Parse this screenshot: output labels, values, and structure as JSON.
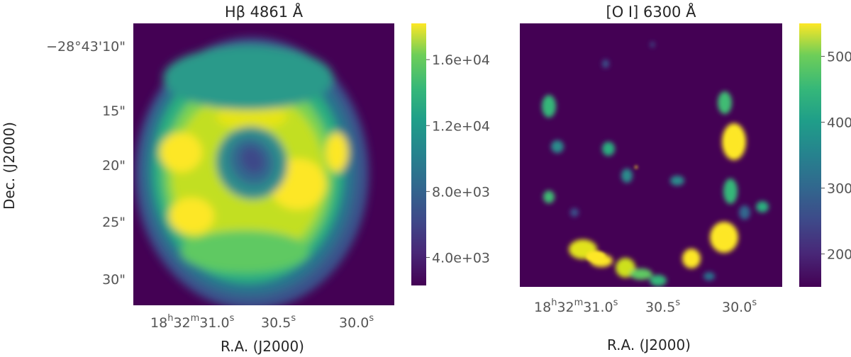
{
  "chart_data": [
    {
      "type": "heatmap",
      "title": "Hβ 4861 Å",
      "xlabel": "R.A. (J2000)",
      "ylabel": "Dec. (J2000)",
      "colormap": "viridis",
      "grid": false,
      "x_ticks": [
        {
          "h": "18",
          "m": "32",
          "s": "31.0",
          "label": "18h32m31.0s"
        },
        {
          "s": "30.5",
          "label": "30.5s"
        },
        {
          "s": "30.0",
          "label": "30.0s"
        }
      ],
      "y_ticks": [
        {
          "label": "−28°43′10″",
          "text": "−28°43'10\""
        },
        {
          "label": "15″",
          "text": "15\""
        },
        {
          "label": "20″",
          "text": "20\""
        },
        {
          "label": "25″",
          "text": "25\""
        },
        {
          "label": "30″",
          "text": "30\""
        }
      ],
      "colorbar": {
        "range": [
          2300,
          18200
        ],
        "ticks": [
          4000,
          8000,
          12000,
          16000
        ],
        "tick_labels": [
          "4.0e+03",
          "8.0e+03",
          "1.2e+04",
          "1.6e+04"
        ]
      },
      "description": "bright ring of emission with a darker central hole, enclosed in a fainter diffuse halo"
    },
    {
      "type": "heatmap",
      "title": "[O I] 6300 Å",
      "xlabel": "R.A. (J2000)",
      "colormap": "viridis",
      "grid": false,
      "x_ticks": [
        {
          "h": "18",
          "m": "32",
          "s": "31.0",
          "label": "18h32m31.0s"
        },
        {
          "s": "30.5",
          "label": "30.5s"
        },
        {
          "s": "30.0",
          "label": "30.0s"
        }
      ],
      "colorbar": {
        "range": [
          150,
          550
        ],
        "ticks": [
          200,
          300,
          400,
          500
        ],
        "tick_labels": [
          "200",
          "300",
          "400",
          "500"
        ]
      },
      "description": "clumpy knots of emission arranged along a ring, strongest on the east/south-west side"
    }
  ],
  "colors": {
    "viridis_low": "#440154",
    "viridis_mid": "#21918c",
    "viridis_high": "#fde725"
  }
}
